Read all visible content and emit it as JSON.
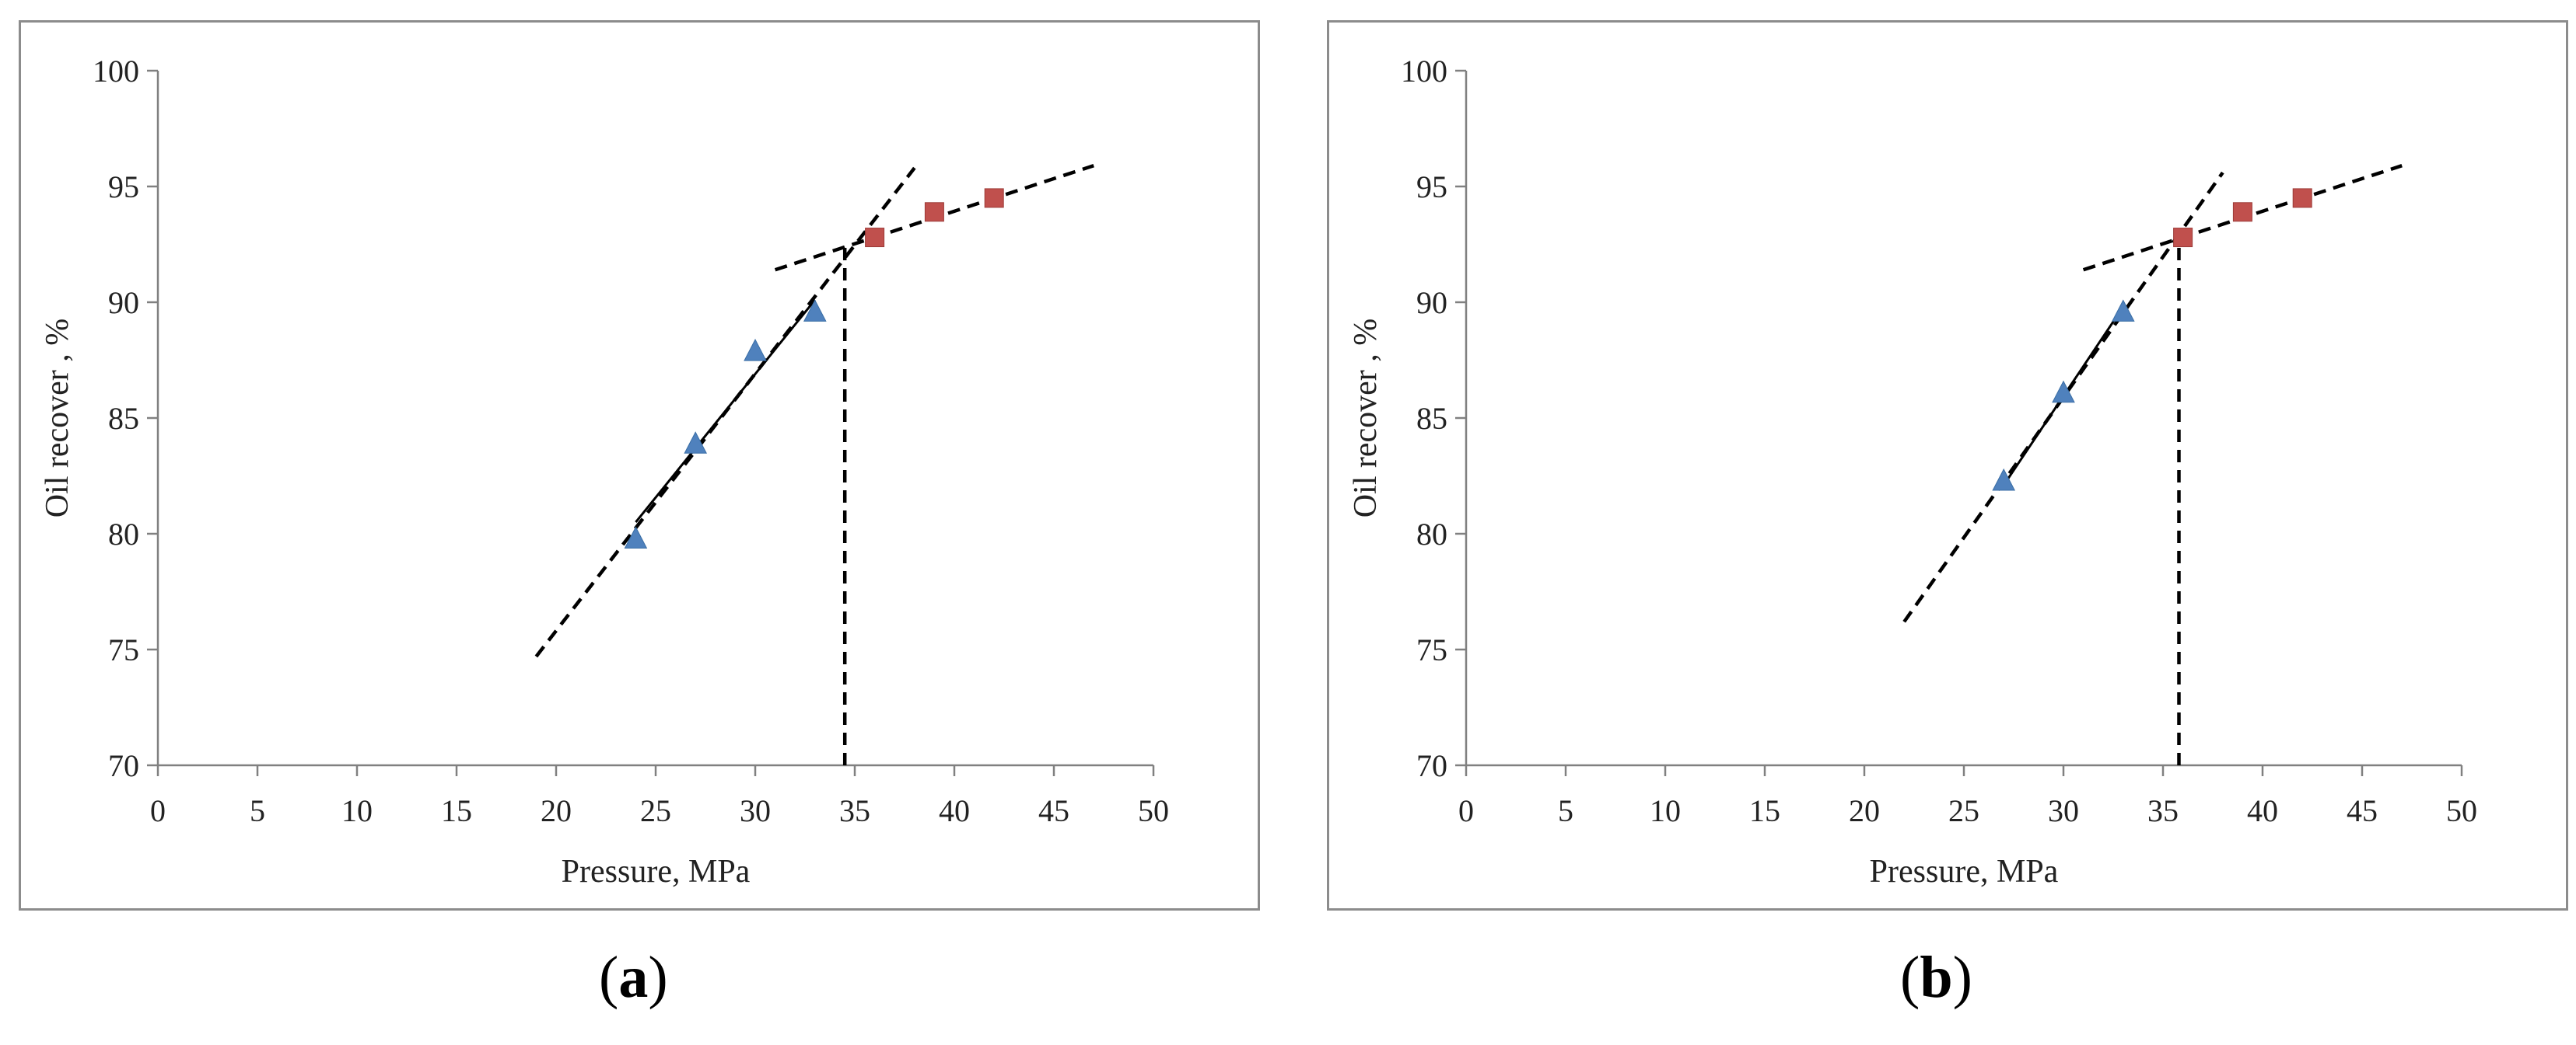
{
  "colors": {
    "series1": "#4f81bd",
    "series2": "#c0504d",
    "axis": "#808080",
    "fit_line": "#000000",
    "frame": "#8c8c8c"
  },
  "chart_data": [
    {
      "type": "scatter",
      "panel_label": "a",
      "xlabel": "Pressure, MPa",
      "ylabel": "Oil recover , %",
      "xlim": [
        0,
        50
      ],
      "ylim": [
        70,
        100
      ],
      "xticks": [
        "0",
        "5",
        "10",
        "15",
        "20",
        "25",
        "30",
        "35",
        "40",
        "45",
        "50"
      ],
      "yticks": [
        "70",
        "75",
        "80",
        "85",
        "90",
        "95",
        "100"
      ],
      "grid": false,
      "legend": "none",
      "series": [
        {
          "marker": "triangle",
          "color": "#4f81bd",
          "x": [
            24,
            27,
            30,
            33
          ],
          "y": [
            79.8,
            83.9,
            87.9,
            89.6
          ]
        },
        {
          "marker": "square",
          "color": "#c0504d",
          "x": [
            36,
            39,
            42
          ],
          "y": [
            92.8,
            93.9,
            94.5
          ]
        }
      ],
      "trend_lines": [
        {
          "style": "dashed",
          "x": [
            19,
            38
          ],
          "y": [
            74.7,
            95.8
          ]
        },
        {
          "style": "solid",
          "x": [
            24,
            33
          ],
          "y": [
            80.5,
            90.1
          ]
        },
        {
          "style": "dashed",
          "x": [
            31,
            47
          ],
          "y": [
            91.4,
            95.9
          ]
        },
        {
          "style": "dashed",
          "x": [
            34.5,
            34.5
          ],
          "y": [
            70,
            92.6
          ]
        }
      ]
    },
    {
      "type": "scatter",
      "panel_label": "b",
      "xlabel": "Pressure, MPa",
      "ylabel": "Oil recover , %",
      "xlim": [
        0,
        50
      ],
      "ylim": [
        70,
        100
      ],
      "xticks": [
        "0",
        "5",
        "10",
        "15",
        "20",
        "25",
        "30",
        "35",
        "40",
        "45",
        "50"
      ],
      "yticks": [
        "70",
        "75",
        "80",
        "85",
        "90",
        "95",
        "100"
      ],
      "grid": false,
      "legend": "none",
      "series": [
        {
          "marker": "triangle",
          "color": "#4f81bd",
          "x": [
            27,
            30,
            33
          ],
          "y": [
            82.3,
            86.1,
            89.6
          ]
        },
        {
          "marker": "square",
          "color": "#c0504d",
          "x": [
            36,
            39,
            42
          ],
          "y": [
            92.8,
            93.9,
            94.5
          ]
        }
      ],
      "trend_lines": [
        {
          "style": "dashed",
          "x": [
            22,
            38
          ],
          "y": [
            76.2,
            95.6
          ]
        },
        {
          "style": "solid",
          "x": [
            27,
            33
          ],
          "y": [
            82.1,
            89.8
          ]
        },
        {
          "style": "dashed",
          "x": [
            31,
            47
          ],
          "y": [
            91.4,
            95.9
          ]
        },
        {
          "style": "dashed",
          "x": [
            35.8,
            35.8
          ],
          "y": [
            70,
            92.6
          ]
        }
      ]
    }
  ]
}
